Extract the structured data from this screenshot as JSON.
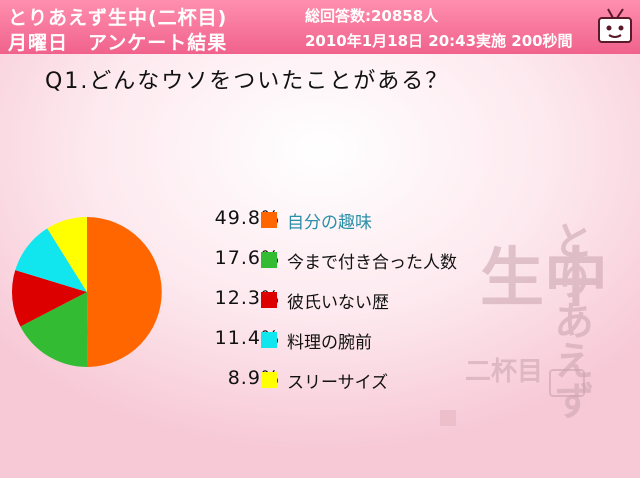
{
  "header": {
    "title": "とりあえず生中(二杯目)",
    "subtitle": "月曜日　アンケート結果",
    "total": "総回答数:20858人",
    "datetime": "2010年1月18日 20:43実施 200秒間"
  },
  "question": "Q1.どんなウソをついたことがある？",
  "colors": {
    "header": "#f0628c",
    "accent_text": "#2a8fa8"
  },
  "chart_data": {
    "type": "pie",
    "title": "",
    "categories": [
      "自分の趣味",
      "今まで付き合った人数",
      "彼氏いない歴",
      "料理の腕前",
      "スリーサイズ"
    ],
    "values": [
      49.8,
      17.6,
      12.3,
      11.4,
      8.9
    ],
    "labels": [
      "49.8%",
      "17.6%",
      "12.3%",
      "11.4%",
      "8.9%"
    ],
    "colors": [
      "#ff6600",
      "#33bb33",
      "#dd0000",
      "#11e5ee",
      "#ffff00"
    ],
    "legend": "right"
  },
  "watermark": {
    "line1": "とりあえず",
    "line2": "生中",
    "line3": "二杯目"
  }
}
